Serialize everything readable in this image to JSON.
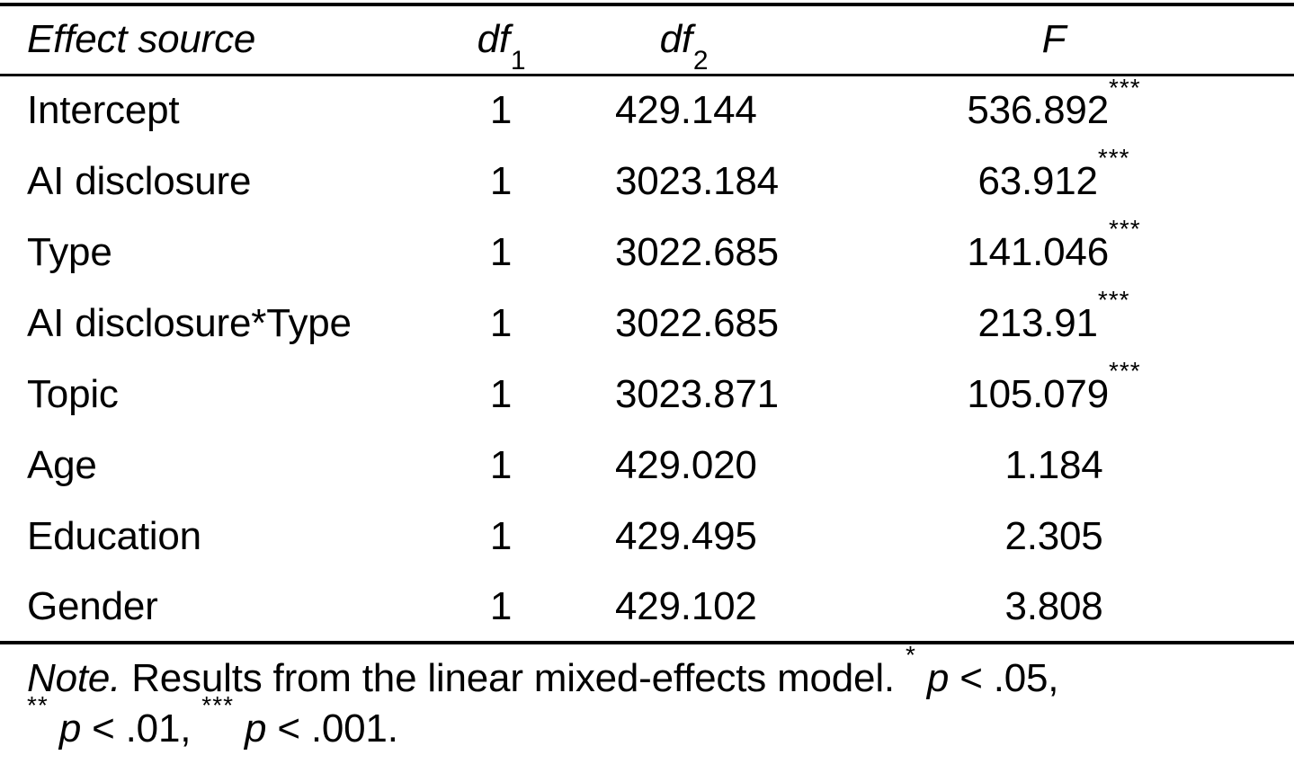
{
  "page": {
    "background": "#ffffff",
    "text_color": "#000000"
  },
  "table": {
    "header": {
      "effect_source": "Effect source",
      "df1": {
        "base": "df",
        "sub": "1"
      },
      "df2": {
        "base": "df",
        "sub": "2"
      },
      "f": "F"
    },
    "rows": [
      {
        "label": "Intercept",
        "df1": "1",
        "df2": "429.144",
        "f": "536.892",
        "stars": "***"
      },
      {
        "label": "AI disclosure",
        "df1": "1",
        "df2": "3023.184",
        "f": "63.912",
        "stars": "***"
      },
      {
        "label": "Type",
        "df1": "1",
        "df2": "3022.685",
        "f": "141.046",
        "stars": "***"
      },
      {
        "label": "AI disclosure*Type",
        "df1": "1",
        "df2": "3022.685",
        "f": "213.91",
        "stars": "***"
      },
      {
        "label": "Topic",
        "df1": "1",
        "df2": "3023.871",
        "f": "105.079",
        "stars": "***"
      },
      {
        "label": "Age",
        "df1": "1",
        "df2": "429.020",
        "f": "1.184",
        "stars": ""
      },
      {
        "label": "Education",
        "df1": "1",
        "df2": "429.495",
        "f": "2.305",
        "stars": ""
      },
      {
        "label": "Gender",
        "df1": "1",
        "df2": "429.102",
        "f": "3.808",
        "stars": ""
      }
    ]
  },
  "note": {
    "label": "Note.",
    "body": "Results from the linear mixed-effects model.",
    "sig": [
      {
        "stars": "*",
        "p": "p",
        "threshold": "< .05,"
      },
      {
        "stars": "**",
        "p": "p",
        "threshold": "< .01,"
      },
      {
        "stars": "***",
        "p": "p",
        "threshold": "< .001."
      }
    ]
  }
}
